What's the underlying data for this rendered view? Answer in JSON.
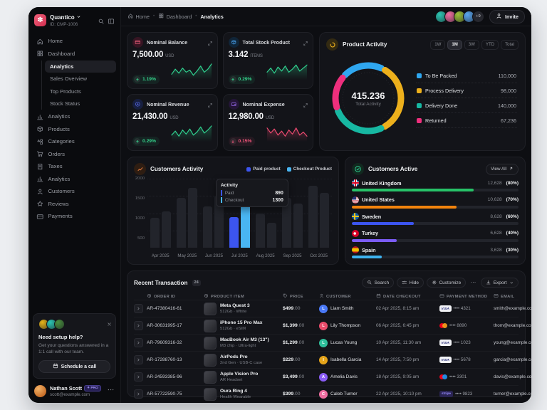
{
  "app": {
    "brand": "Quantico",
    "org_id": "ID: CMP-1006"
  },
  "breadcrumb": {
    "items": [
      "Home",
      "Dashboard",
      "Analytics"
    ]
  },
  "header": {
    "avatar_colors": [
      "#2cc5b2",
      "#ef6da0",
      "#9bbf3a",
      "#5aa7f0"
    ],
    "overflow": "+9",
    "invite_label": "Invite"
  },
  "sidebar": {
    "items": [
      {
        "icon": "home",
        "label": "Home"
      },
      {
        "icon": "grid",
        "label": "Dashboard",
        "children": [
          "Analytics",
          "Sales Overview",
          "Top Products",
          "Stock Status"
        ],
        "active_child": "Analytics"
      },
      {
        "icon": "chart",
        "label": "Analytics"
      },
      {
        "icon": "box",
        "label": "Products"
      },
      {
        "icon": "shapes",
        "label": "Categories"
      },
      {
        "icon": "cart",
        "label": "Orders"
      },
      {
        "icon": "receipt",
        "label": "Taxes"
      },
      {
        "icon": "chart",
        "label": "Analytics"
      },
      {
        "icon": "users",
        "label": "Customers"
      },
      {
        "icon": "star",
        "label": "Reviews"
      },
      {
        "icon": "card",
        "label": "Payments"
      }
    ],
    "help_card": {
      "avatar_colors": [
        "#e5b41a",
        "#2cc5b2",
        "#4a8f3f"
      ],
      "title": "Need setup help?",
      "body": "Get your questions answered in a 1:1 call with our team.",
      "cta": "Schedule a call"
    },
    "profile": {
      "name": "Nathan Scott",
      "badge": "PRO",
      "email": "scott@example.com"
    }
  },
  "stat_cards": [
    {
      "title": "Nominal Balance",
      "value": "7,500.00",
      "unit": "USD",
      "change": "1.19%",
      "dir": "up",
      "icon": "card",
      "icon_bg": "#371523",
      "icon_color": "#f0607c",
      "trend_color": "#2fcf8e",
      "spark": [
        4,
        9,
        5,
        10,
        6,
        8,
        3,
        7,
        12,
        6,
        9,
        14
      ]
    },
    {
      "title": "Total Stock Product",
      "value": "3.142",
      "unit": "ITEMS",
      "change": "0.29%",
      "dir": "up",
      "icon": "box",
      "icon_bg": "#102538",
      "icon_color": "#4aa3f0",
      "trend_color": "#2fcf8e",
      "spark": [
        6,
        10,
        5,
        11,
        7,
        12,
        6,
        9,
        13,
        7,
        10,
        13
      ]
    },
    {
      "title": "Nominal Revenue",
      "value": "21,430.00",
      "unit": "USD",
      "change": "0.29%",
      "dir": "up",
      "icon": "coin",
      "icon_bg": "#171f40",
      "icon_color": "#5b6cf0",
      "trend_color": "#2fcf8e",
      "spark": [
        5,
        9,
        4,
        10,
        6,
        11,
        5,
        8,
        13,
        7,
        10,
        14
      ]
    },
    {
      "title": "Nominal Expense",
      "value": "12,980.00",
      "unit": "USD",
      "change": "0.15%",
      "dir": "down",
      "icon": "wallet",
      "icon_bg": "#241537",
      "icon_color": "#9b6df2",
      "trend_color": "#e8486e",
      "spark": [
        12,
        7,
        11,
        5,
        9,
        4,
        10,
        6,
        12,
        5,
        8,
        4
      ]
    }
  ],
  "product_activity": {
    "title": "Product Activity",
    "tabs": [
      "1W",
      "1M",
      "3W",
      "YTD",
      "Total"
    ],
    "active_tab": "1M",
    "center": {
      "value": "415.236",
      "label": "Total Activity"
    },
    "chart_data": {
      "type": "pie",
      "segments": [
        {
          "label": "To Be Packed",
          "value": "110,000",
          "color": "#2fa7f0",
          "arc": 0.19
        },
        {
          "label": "Process Delivery",
          "value": "98,000",
          "color": "#edb01c",
          "arc": 0.33
        },
        {
          "label": "Delivery Done",
          "value": "140,000",
          "color": "#17b8a2",
          "arc": 0.25
        },
        {
          "label": "Returned",
          "value": "67,236",
          "color": "#ee2f7d",
          "arc": 0.15
        }
      ]
    }
  },
  "customers_activity": {
    "title": "Customers Activity",
    "legend": [
      {
        "label": "Paid product",
        "color": "#3c55f0"
      },
      {
        "label": "Checkout Product",
        "color": "#49b5f2"
      }
    ],
    "chart_data": {
      "type": "bar",
      "categories": [
        "Apr 2025",
        "May 2025",
        "Jun 2025",
        "Jul 2025",
        "Aug 2025",
        "Sep 2025",
        "Oct 2025"
      ],
      "series": [
        {
          "name": "Paid product",
          "color": "#3c55f0",
          "values": [
            870,
            1450,
            1200,
            890,
            980,
            1440,
            1790
          ]
        },
        {
          "name": "Checkout Product",
          "color": "#49b5f2",
          "values": [
            1050,
            1730,
            1500,
            1300,
            720,
            1270,
            1580
          ]
        }
      ],
      "ymax": 2000,
      "yticks": [
        "2000",
        "1500",
        "1000",
        "500"
      ],
      "highlight_index": 3,
      "tooltip": {
        "title": "Activity",
        "rows": [
          {
            "label": "Paid",
            "value": "890",
            "color": "#3c55f0"
          },
          {
            "label": "Checkout",
            "value": "1300",
            "color": "#49b5f2"
          }
        ]
      }
    }
  },
  "customers_active": {
    "title": "Customers Active",
    "view_all": "View All",
    "rows": [
      {
        "country": "United Kingdom",
        "flag": "uk",
        "value": "12,628",
        "pct": "(80%)",
        "bar_pct": 73,
        "color": "#27c268"
      },
      {
        "country": "United States",
        "flag": "us",
        "value": "10,628",
        "pct": "(70%)",
        "bar_pct": 63,
        "color": "#f2830d"
      },
      {
        "country": "Sweden",
        "flag": "se",
        "value": "8,628",
        "pct": "(60%)",
        "bar_pct": 37,
        "color": "#3c55f0"
      },
      {
        "country": "Turkey",
        "flag": "tr",
        "value": "6,628",
        "pct": "(40%)",
        "bar_pct": 27,
        "color": "#7b5cf5"
      },
      {
        "country": "Spain",
        "flag": "es",
        "value": "3,628",
        "pct": "(30%)",
        "bar_pct": 18,
        "color": "#3eb3f0"
      }
    ]
  },
  "transactions": {
    "title": "Recent Transaction",
    "count": "24",
    "toolbar": {
      "search": "Search",
      "hide": "Hide",
      "customize": "Customize",
      "more": "···",
      "export": "Export"
    },
    "columns": [
      {
        "icon": "box",
        "label": "ORDER ID"
      },
      {
        "icon": "box",
        "label": "PRODUCT ITEM"
      },
      {
        "icon": "tag",
        "label": "PRICE"
      },
      {
        "icon": "person",
        "label": "CUSTOMER"
      },
      {
        "icon": "calendar",
        "label": "DATE CHECKOUT"
      },
      {
        "icon": "card",
        "label": "PAYMENT METHOD"
      },
      {
        "icon": "mail",
        "label": "EMAIL"
      }
    ],
    "rows": [
      {
        "order": "AR-47380416-61",
        "product": "Meta Quest 3",
        "sub": "512Gb · White",
        "price": "$499.00",
        "customer": "Liam Smith",
        "avatar": "#4a79f7",
        "date": "02 Apr 2025, 8:15 am",
        "pay": "visa",
        "last4": "4321",
        "email": "smith@example.com"
      },
      {
        "order": "AR-30631995-17",
        "product": "iPhone 15 Pro Max",
        "sub": "512Gb · eSIM",
        "price": "$1,399.00",
        "customer": "Lily Thompson",
        "avatar": "#e84c6b",
        "date": "06 Apr 2025, 6:45 pm",
        "pay": "mc",
        "last4": "8890",
        "email": "thom@example.com"
      },
      {
        "order": "AR-79609316-32",
        "product": "MacBook Air M3 (13\")",
        "sub": "M3 chip · Ultra-light",
        "price": "$1,299.00",
        "customer": "Lucas Young",
        "avatar": "#2fbf9b",
        "date": "10 Apr 2025, 11:30 am",
        "pay": "visa",
        "last4": "1023",
        "email": "young@example.com"
      },
      {
        "order": "AR-17288760-13",
        "product": "AirPods Pro",
        "sub": "2nd Gen · USB-C case",
        "price": "$229.00",
        "customer": "Isabella Garcia",
        "avatar": "#e5a41a",
        "date": "14 Apr 2025, 7:50 pm",
        "pay": "visa",
        "last4": "5678",
        "email": "garcia@example.com"
      },
      {
        "order": "AR-24593385-96",
        "product": "Apple Vision Pro",
        "sub": "AR Headset",
        "price": "$3,499.00",
        "customer": "Amelia Davis",
        "avatar": "#8a5cf6",
        "date": "18 Apr 2025, 9:05 am",
        "pay": "mc2",
        "last4": "3301",
        "email": "davis@example.com"
      },
      {
        "order": "AR-57722590-75",
        "product": "Oura Ring 4",
        "sub": "Health Wearable",
        "price": "$399.00",
        "customer": "Caleb Turner",
        "avatar": "#ef6da0",
        "date": "22 Apr 2025, 10:10 pm",
        "pay": "stripe",
        "last4": "9823",
        "email": "turner@example.com"
      }
    ]
  }
}
